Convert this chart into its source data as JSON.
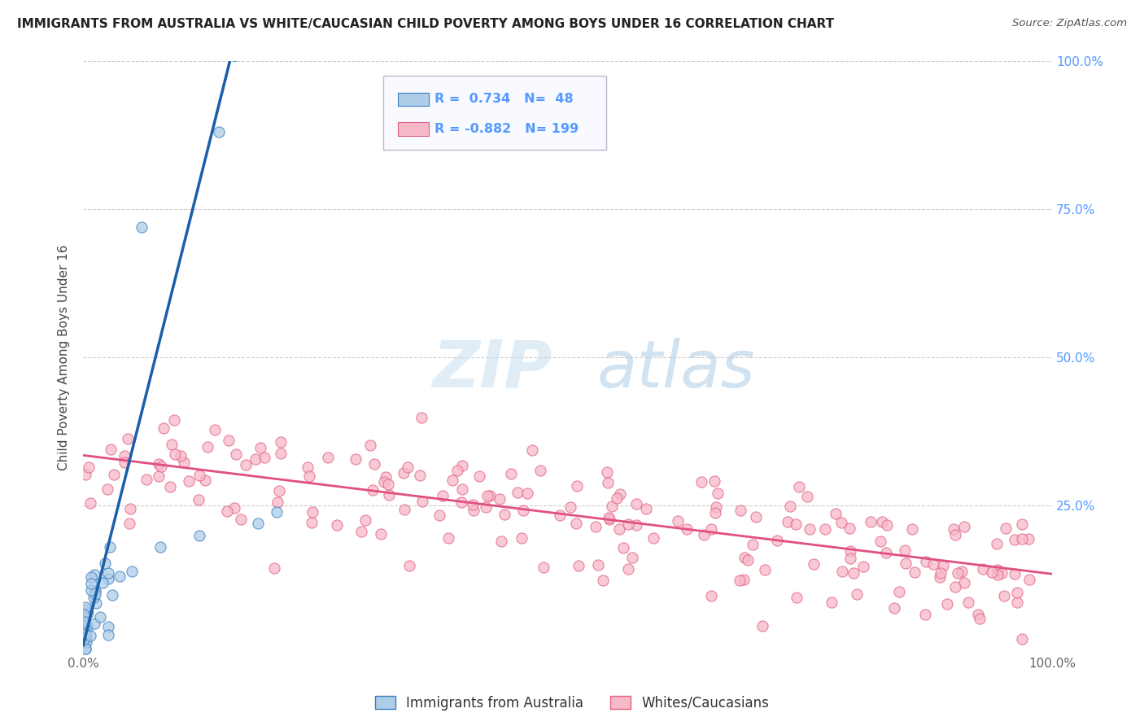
{
  "title": "IMMIGRANTS FROM AUSTRALIA VS WHITE/CAUCASIAN CHILD POVERTY AMONG BOYS UNDER 16 CORRELATION CHART",
  "source": "Source: ZipAtlas.com",
  "ylabel": "Child Poverty Among Boys Under 16",
  "r_blue": 0.734,
  "n_blue": 48,
  "r_pink": -0.882,
  "n_pink": 199,
  "xlim": [
    0,
    1
  ],
  "ylim": [
    0,
    1
  ],
  "color_blue_fill": "#aecde8",
  "color_blue_edge": "#3b7ec0",
  "color_blue_line": "#1a5fa8",
  "color_pink_fill": "#f7b8c8",
  "color_pink_edge": "#e06080",
  "color_pink_line": "#e05080",
  "watermark_zip": "ZIP",
  "watermark_atlas": "atlas",
  "background": "#ffffff",
  "grid_color": "#cccccc",
  "legend_label_blue": "Immigrants from Australia",
  "legend_label_pink": "Whites/Caucasians",
  "right_tick_color": "#5599ff",
  "tick_color": "#666666"
}
